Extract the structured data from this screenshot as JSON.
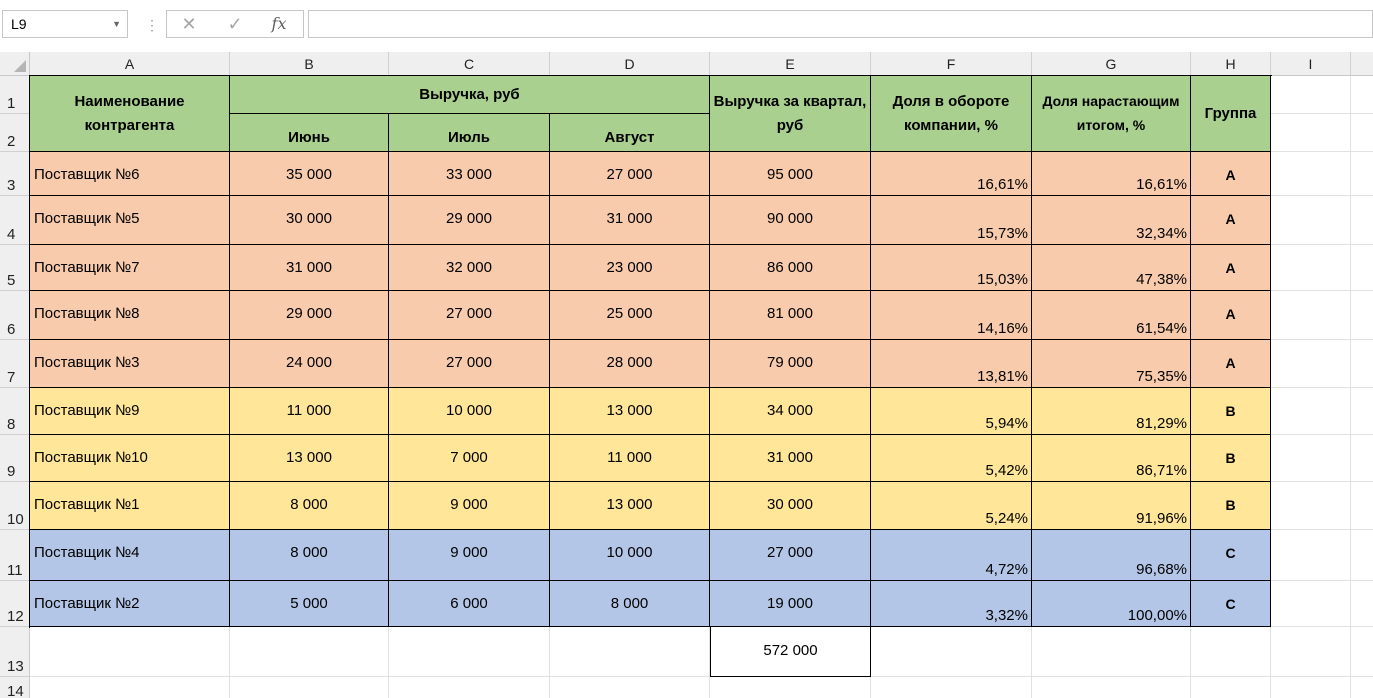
{
  "formula_bar": {
    "name_box": "L9",
    "cancel_icon": "close-icon",
    "enter_icon": "check-icon",
    "fx_label": "fx",
    "formula_value": ""
  },
  "columns": [
    "A",
    "B",
    "C",
    "D",
    "E",
    "F",
    "G",
    "H",
    "I"
  ],
  "rows": [
    "1",
    "2",
    "3",
    "4",
    "5",
    "6",
    "7",
    "8",
    "9",
    "10",
    "11",
    "12",
    "13",
    "14"
  ],
  "header": {
    "name": "Наименование контрагента",
    "revenue": "Выручка, руб",
    "june": "Июнь",
    "july": "Июль",
    "august": "Август",
    "quarter": "Выручка за квартал, руб",
    "share": "Доля в обороте компании, %",
    "cumulative": "Доля нарастающим итогом, %",
    "group": "Группа"
  },
  "table": [
    {
      "name": "Поставщик №6",
      "june": "35 000",
      "july": "33 000",
      "august": "27 000",
      "quarter": "95 000",
      "share": "16,61%",
      "cum": "16,61%",
      "group": "A"
    },
    {
      "name": "Поставщик №5",
      "june": "30 000",
      "july": "29 000",
      "august": "31 000",
      "quarter": "90 000",
      "share": "15,73%",
      "cum": "32,34%",
      "group": "A"
    },
    {
      "name": "Поставщик №7",
      "june": "31 000",
      "july": "32 000",
      "august": "23 000",
      "quarter": "86 000",
      "share": "15,03%",
      "cum": "47,38%",
      "group": "A"
    },
    {
      "name": "Поставщик №8",
      "june": "29 000",
      "july": "27 000",
      "august": "25 000",
      "quarter": "81 000",
      "share": "14,16%",
      "cum": "61,54%",
      "group": "A"
    },
    {
      "name": "Поставщик №3",
      "june": "24 000",
      "july": "27 000",
      "august": "28 000",
      "quarter": "79 000",
      "share": "13,81%",
      "cum": "75,35%",
      "group": "A"
    },
    {
      "name": "Поставщик №9",
      "june": "11 000",
      "july": "10 000",
      "august": "13 000",
      "quarter": "34 000",
      "share": "5,94%",
      "cum": "81,29%",
      "group": "B"
    },
    {
      "name": "Поставщик №10",
      "june": "13 000",
      "july": "7 000",
      "august": "11 000",
      "quarter": "31 000",
      "share": "5,42%",
      "cum": "86,71%",
      "group": "B"
    },
    {
      "name": "Поставщик №1",
      "june": "8 000",
      "july": "9 000",
      "august": "13 000",
      "quarter": "30 000",
      "share": "5,24%",
      "cum": "91,96%",
      "group": "B"
    },
    {
      "name": "Поставщик №4",
      "june": "8 000",
      "july": "9 000",
      "august": "10 000",
      "quarter": "27 000",
      "share": "4,72%",
      "cum": "96,68%",
      "group": "C"
    },
    {
      "name": "Поставщик №2",
      "june": "5 000",
      "july": "6 000",
      "august": "8 000",
      "quarter": "19 000",
      "share": "3,32%",
      "cum": "100,00%",
      "group": "C"
    }
  ],
  "total": "572 000",
  "colors": {
    "header_green": "#a9d08e",
    "group_a": "#f8cbad",
    "group_b": "#ffe699",
    "group_c": "#b4c6e7"
  }
}
